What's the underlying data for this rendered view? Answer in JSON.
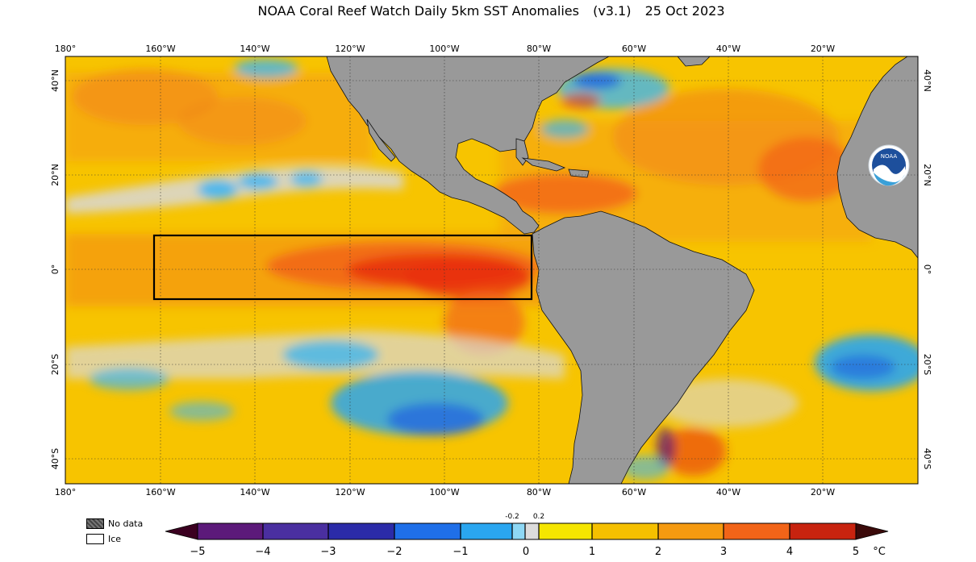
{
  "title": {
    "main": "NOAA Coral Reef Watch Daily 5km SST Anomalies",
    "version": "(v3.1)",
    "date": "25 Oct 2023"
  },
  "longitude_labels": [
    "180°",
    "160°W",
    "140°W",
    "120°W",
    "100°W",
    "80°W",
    "60°W",
    "40°W",
    "20°W"
  ],
  "latitude_labels_left": [
    "40°N",
    "20°N",
    "0°",
    "20°S",
    "40°S"
  ],
  "latitude_labels_right": [
    "40°N",
    "20°N",
    "0°",
    "20°S",
    "40°S"
  ],
  "logo": {
    "text": "NOAA",
    "icon": "noaa-logo-icon"
  },
  "key": {
    "no_data": "No data",
    "ice": "Ice"
  },
  "colorbar": {
    "ticks": [
      "−5",
      "−4",
      "−3",
      "−2",
      "−1",
      "0",
      "1",
      "2",
      "3",
      "4",
      "5"
    ],
    "small_ticks": [
      "-0.2",
      "0.2"
    ],
    "unit": "°C",
    "colors": {
      "m5": "#3b0020",
      "m4": "#5c1a7a",
      "m3": "#2b2ba8",
      "m2": "#1f5fe0",
      "m1": "#2aa6f0",
      "neutral": "#dcdcdc",
      "p0": "#f5e600",
      "p1": "#f5c000",
      "p2": "#f59a10",
      "p3": "#f26418",
      "p4": "#e82f10",
      "p5": "#9a1a10"
    }
  },
  "colors": {
    "land": "#999999",
    "ocean_base": "#f7c800"
  },
  "region_box": "Niño region outline"
}
